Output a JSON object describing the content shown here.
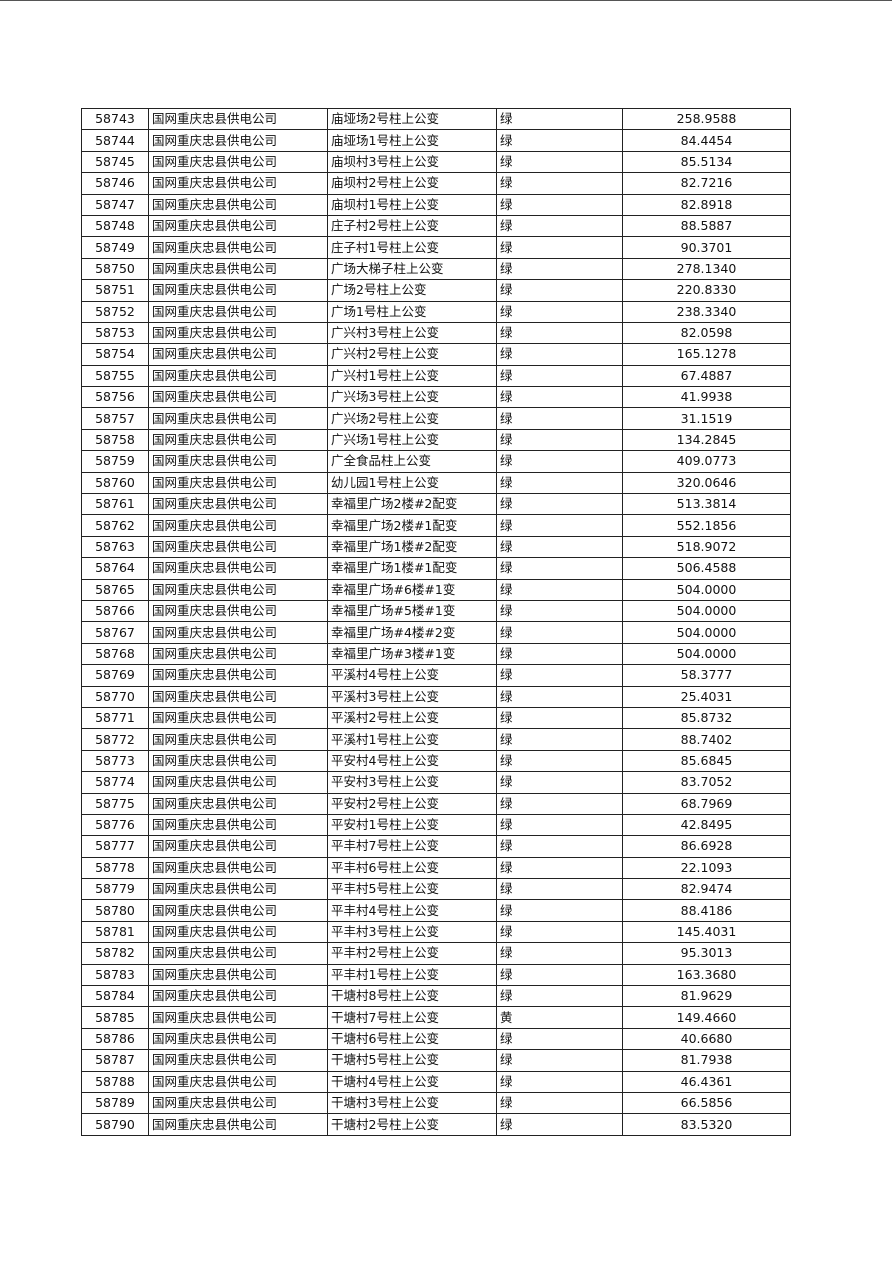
{
  "table": {
    "rows": [
      [
        "58743",
        "国网重庆忠县供电公司",
        "庙垭场2号柱上公变",
        "绿",
        "258.9588"
      ],
      [
        "58744",
        "国网重庆忠县供电公司",
        "庙垭场1号柱上公变",
        "绿",
        "84.4454"
      ],
      [
        "58745",
        "国网重庆忠县供电公司",
        "庙坝村3号柱上公变",
        "绿",
        "85.5134"
      ],
      [
        "58746",
        "国网重庆忠县供电公司",
        "庙坝村2号柱上公变",
        "绿",
        "82.7216"
      ],
      [
        "58747",
        "国网重庆忠县供电公司",
        "庙坝村1号柱上公变",
        "绿",
        "82.8918"
      ],
      [
        "58748",
        "国网重庆忠县供电公司",
        "庄子村2号柱上公变",
        "绿",
        "88.5887"
      ],
      [
        "58749",
        "国网重庆忠县供电公司",
        "庄子村1号柱上公变",
        "绿",
        "90.3701"
      ],
      [
        "58750",
        "国网重庆忠县供电公司",
        "广场大梯子柱上公变",
        "绿",
        "278.1340"
      ],
      [
        "58751",
        "国网重庆忠县供电公司",
        "广场2号柱上公变",
        "绿",
        "220.8330"
      ],
      [
        "58752",
        "国网重庆忠县供电公司",
        "广场1号柱上公变",
        "绿",
        "238.3340"
      ],
      [
        "58753",
        "国网重庆忠县供电公司",
        "广兴村3号柱上公变",
        "绿",
        "82.0598"
      ],
      [
        "58754",
        "国网重庆忠县供电公司",
        "广兴村2号柱上公变",
        "绿",
        "165.1278"
      ],
      [
        "58755",
        "国网重庆忠县供电公司",
        "广兴村1号柱上公变",
        "绿",
        "67.4887"
      ],
      [
        "58756",
        "国网重庆忠县供电公司",
        "广兴场3号柱上公变",
        "绿",
        "41.9938"
      ],
      [
        "58757",
        "国网重庆忠县供电公司",
        "广兴场2号柱上公变",
        "绿",
        "31.1519"
      ],
      [
        "58758",
        "国网重庆忠县供电公司",
        "广兴场1号柱上公变",
        "绿",
        "134.2845"
      ],
      [
        "58759",
        "国网重庆忠县供电公司",
        "广全食品柱上公变",
        "绿",
        "409.0773"
      ],
      [
        "58760",
        "国网重庆忠县供电公司",
        "幼儿园1号柱上公变",
        "绿",
        "320.0646"
      ],
      [
        "58761",
        "国网重庆忠县供电公司",
        "幸福里广场2楼#2配变",
        "绿",
        "513.3814"
      ],
      [
        "58762",
        "国网重庆忠县供电公司",
        "幸福里广场2楼#1配变",
        "绿",
        "552.1856"
      ],
      [
        "58763",
        "国网重庆忠县供电公司",
        "幸福里广场1楼#2配变",
        "绿",
        "518.9072"
      ],
      [
        "58764",
        "国网重庆忠县供电公司",
        "幸福里广场1楼#1配变",
        "绿",
        "506.4588"
      ],
      [
        "58765",
        "国网重庆忠县供电公司",
        "幸福里广场#6楼#1变",
        "绿",
        "504.0000"
      ],
      [
        "58766",
        "国网重庆忠县供电公司",
        "幸福里广场#5楼#1变",
        "绿",
        "504.0000"
      ],
      [
        "58767",
        "国网重庆忠县供电公司",
        "幸福里广场#4楼#2变",
        "绿",
        "504.0000"
      ],
      [
        "58768",
        "国网重庆忠县供电公司",
        "幸福里广场#3楼#1变",
        "绿",
        "504.0000"
      ],
      [
        "58769",
        "国网重庆忠县供电公司",
        "平溪村4号柱上公变",
        "绿",
        "58.3777"
      ],
      [
        "58770",
        "国网重庆忠县供电公司",
        "平溪村3号柱上公变",
        "绿",
        "25.4031"
      ],
      [
        "58771",
        "国网重庆忠县供电公司",
        "平溪村2号柱上公变",
        "绿",
        "85.8732"
      ],
      [
        "58772",
        "国网重庆忠县供电公司",
        "平溪村1号柱上公变",
        "绿",
        "88.7402"
      ],
      [
        "58773",
        "国网重庆忠县供电公司",
        "平安村4号柱上公变",
        "绿",
        "85.6845"
      ],
      [
        "58774",
        "国网重庆忠县供电公司",
        "平安村3号柱上公变",
        "绿",
        "83.7052"
      ],
      [
        "58775",
        "国网重庆忠县供电公司",
        "平安村2号柱上公变",
        "绿",
        "68.7969"
      ],
      [
        "58776",
        "国网重庆忠县供电公司",
        "平安村1号柱上公变",
        "绿",
        "42.8495"
      ],
      [
        "58777",
        "国网重庆忠县供电公司",
        "平丰村7号柱上公变",
        "绿",
        "86.6928"
      ],
      [
        "58778",
        "国网重庆忠县供电公司",
        "平丰村6号柱上公变",
        "绿",
        "22.1093"
      ],
      [
        "58779",
        "国网重庆忠县供电公司",
        "平丰村5号柱上公变",
        "绿",
        "82.9474"
      ],
      [
        "58780",
        "国网重庆忠县供电公司",
        "平丰村4号柱上公变",
        "绿",
        "88.4186"
      ],
      [
        "58781",
        "国网重庆忠县供电公司",
        "平丰村3号柱上公变",
        "绿",
        "145.4031"
      ],
      [
        "58782",
        "国网重庆忠县供电公司",
        "平丰村2号柱上公变",
        "绿",
        "95.3013"
      ],
      [
        "58783",
        "国网重庆忠县供电公司",
        "平丰村1号柱上公变",
        "绿",
        "163.3680"
      ],
      [
        "58784",
        "国网重庆忠县供电公司",
        "干塘村8号柱上公变",
        "绿",
        "81.9629"
      ],
      [
        "58785",
        "国网重庆忠县供电公司",
        "干塘村7号柱上公变",
        "黄",
        "149.4660"
      ],
      [
        "58786",
        "国网重庆忠县供电公司",
        "干塘村6号柱上公变",
        "绿",
        "40.6680"
      ],
      [
        "58787",
        "国网重庆忠县供电公司",
        "干塘村5号柱上公变",
        "绿",
        "81.7938"
      ],
      [
        "58788",
        "国网重庆忠县供电公司",
        "干塘村4号柱上公变",
        "绿",
        "46.4361"
      ],
      [
        "58789",
        "国网重庆忠县供电公司",
        "干塘村3号柱上公变",
        "绿",
        "66.5856"
      ],
      [
        "58790",
        "国网重庆忠县供电公司",
        "干塘村2号柱上公变",
        "绿",
        "83.5320"
      ]
    ]
  }
}
